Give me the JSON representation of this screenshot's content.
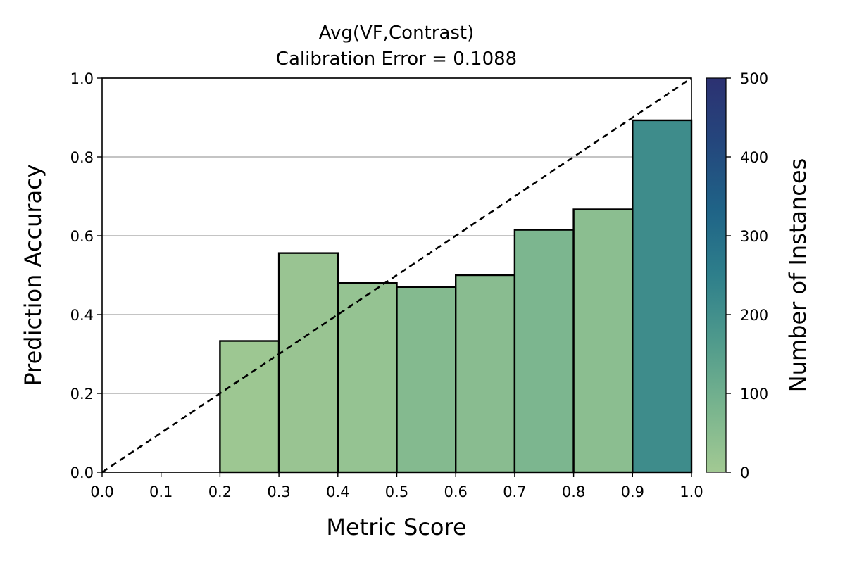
{
  "chart_data": {
    "type": "bar",
    "title": "Avg(VF,Contrast)",
    "subtitle": "Calibration Error = 0.1088",
    "xlabel": "Metric Score",
    "ylabel": "Prediction Accuracy",
    "xlim": [
      0.0,
      1.0
    ],
    "ylim": [
      0.0,
      1.0
    ],
    "x_ticks": [
      "0.0",
      "0.1",
      "0.2",
      "0.3",
      "0.4",
      "0.5",
      "0.6",
      "0.7",
      "0.8",
      "0.9",
      "1.0"
    ],
    "y_ticks": [
      "0.0",
      "0.2",
      "0.4",
      "0.6",
      "0.8",
      "1.0"
    ],
    "grid": "horizontal",
    "bins": [
      {
        "x0": 0.2,
        "x1": 0.3,
        "accuracy": 0.333,
        "count": 9
      },
      {
        "x0": 0.3,
        "x1": 0.4,
        "accuracy": 0.556,
        "count": 18
      },
      {
        "x0": 0.4,
        "x1": 0.5,
        "accuracy": 0.48,
        "count": 25
      },
      {
        "x0": 0.5,
        "x1": 0.6,
        "accuracy": 0.47,
        "count": 60
      },
      {
        "x0": 0.6,
        "x1": 0.7,
        "accuracy": 0.5,
        "count": 50
      },
      {
        "x0": 0.7,
        "x1": 0.8,
        "accuracy": 0.615,
        "count": 75
      },
      {
        "x0": 0.8,
        "x1": 0.9,
        "accuracy": 0.667,
        "count": 45
      },
      {
        "x0": 0.9,
        "x1": 1.0,
        "accuracy": 0.893,
        "count": 210
      }
    ],
    "reference_line": {
      "style": "dashed",
      "from": [
        0.0,
        0.0
      ],
      "to": [
        1.0,
        1.0
      ],
      "color": "#000000"
    },
    "colorbar": {
      "label": "Number of Instances",
      "range": [
        0,
        500
      ],
      "ticks": [
        "0",
        "100",
        "200",
        "300",
        "400",
        "500"
      ],
      "colormap": [
        "#a2c993",
        "#78b48e",
        "#4f9a8c",
        "#2e7f8b",
        "#1f6387",
        "#24477d",
        "#2c3172"
      ]
    }
  }
}
